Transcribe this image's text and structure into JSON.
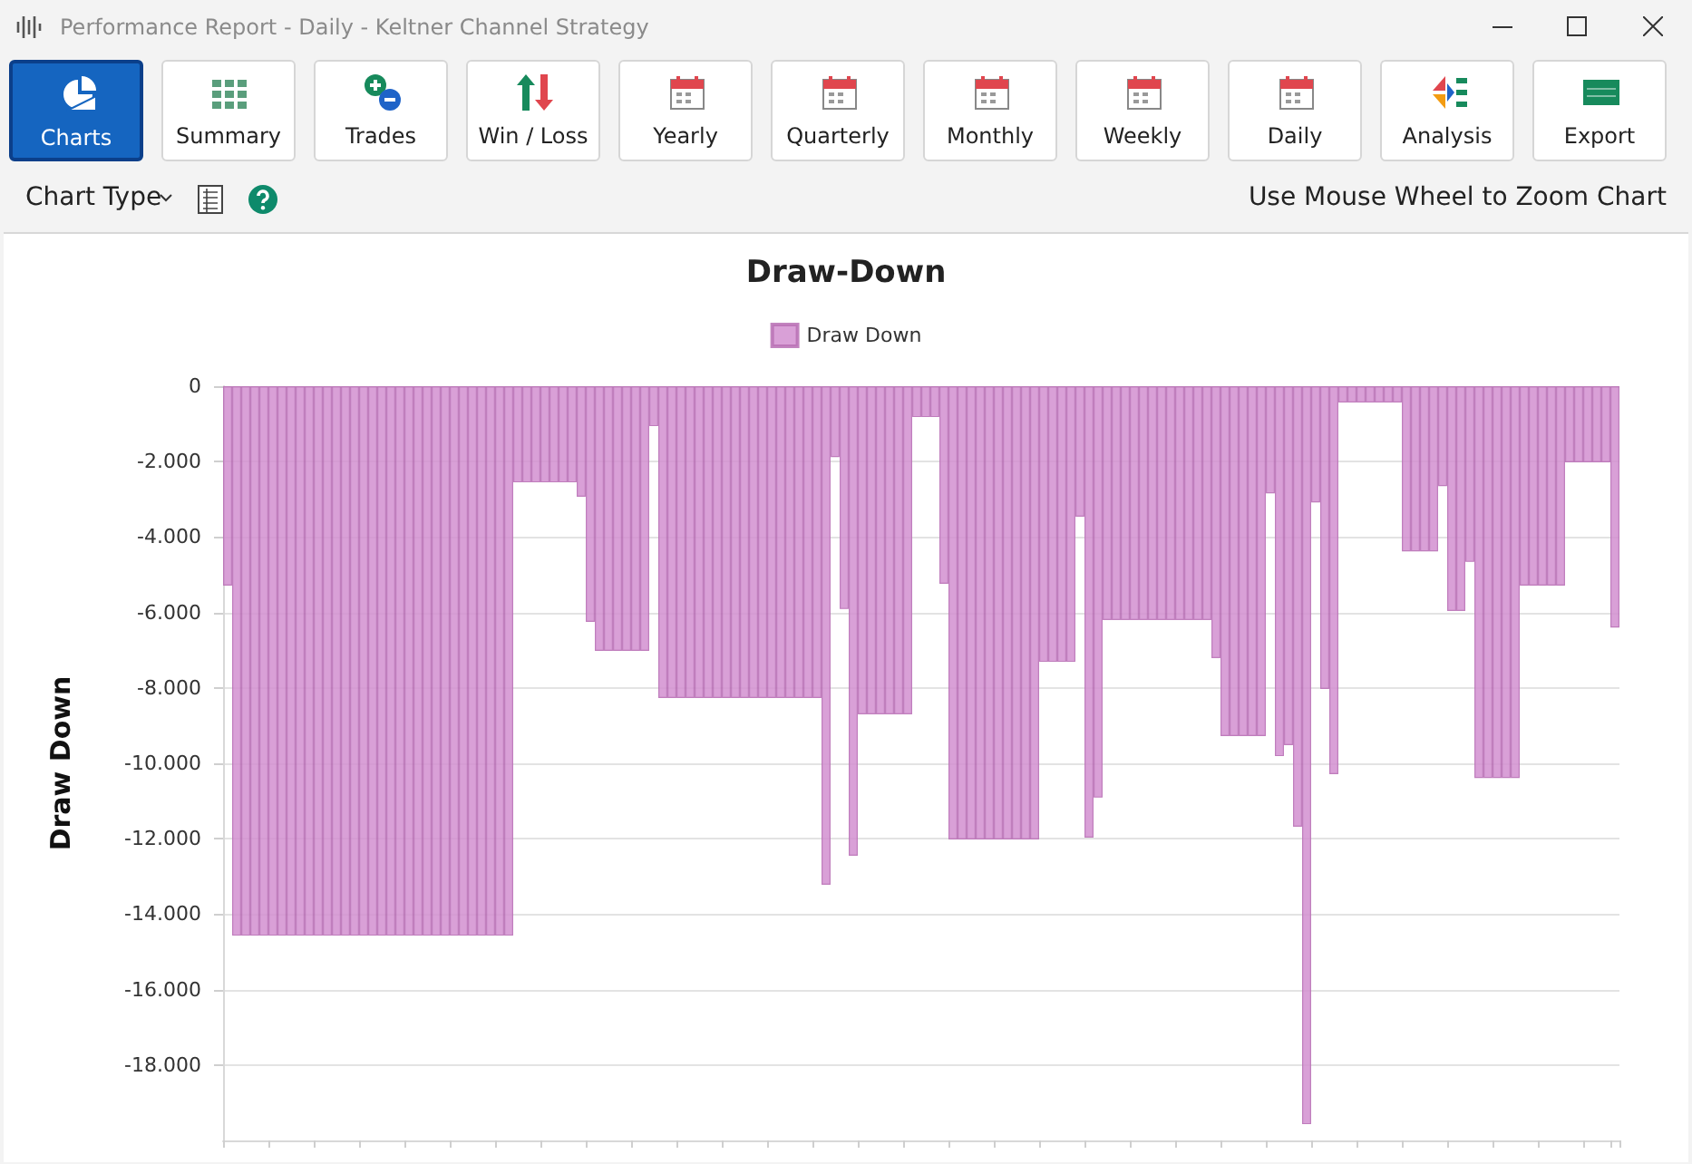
{
  "chart_data": {
    "type": "bar",
    "title": "Draw-Down",
    "ylabel": "Draw Down",
    "annotations": [
      "Performance Report - Daily - Keltner Channel Strategy",
      "Charts",
      "Summary",
      "Trades",
      "Win / Loss",
      "Yearly",
      "Quarterly",
      "Monthly",
      "Weekly",
      "Daily",
      "Analysis",
      "Export",
      "Chart Type",
      "Use Mouse Wheel to Zoom Chart"
    ],
    "categories": [
      null,
      null,
      null,
      null,
      null,
      null,
      null,
      null,
      null,
      null,
      null,
      null,
      null,
      null,
      null,
      null,
      null,
      null,
      null,
      null,
      null,
      null,
      null,
      null,
      null,
      null,
      null,
      null,
      null,
      null,
      null,
      null,
      null,
      null,
      null,
      null,
      null,
      null,
      null,
      null,
      null,
      null,
      null,
      null,
      null,
      null,
      null,
      null,
      null,
      null,
      null,
      null,
      null,
      null,
      null,
      null,
      null,
      null,
      null,
      null,
      null,
      null,
      null,
      null,
      null,
      null,
      null,
      null,
      null,
      null,
      null,
      null,
      null,
      null,
      null,
      null,
      null,
      null,
      null,
      null,
      null,
      null,
      null,
      null,
      null,
      null,
      null,
      null,
      null,
      null,
      null,
      null,
      null,
      null,
      null,
      null,
      null,
      null,
      null,
      null,
      null,
      null,
      null,
      null,
      null,
      null,
      null,
      null,
      null,
      null,
      null,
      null,
      null,
      null,
      null,
      null,
      null,
      null,
      null,
      null,
      null,
      null,
      null,
      null,
      null,
      null,
      null,
      null,
      null,
      null,
      null,
      null,
      null,
      null,
      null,
      null,
      null,
      null,
      null,
      null,
      null,
      null,
      null,
      null,
      null,
      null,
      null,
      null,
      null,
      null,
      null,
      null,
      null,
      null
    ],
    "series": [
      {
        "name": "Draw Down",
        "color": "#d28fd0",
        "values": [
          -5290,
          -14570,
          -14570,
          -14570,
          -14570,
          -14570,
          -14570,
          -14570,
          -14570,
          -14570,
          -14570,
          -14570,
          -14570,
          -14570,
          -14570,
          -14570,
          -14570,
          -14570,
          -14570,
          -14570,
          -14570,
          -14570,
          -14570,
          -14570,
          -14570,
          -14570,
          -14570,
          -14570,
          -14570,
          -14570,
          -14570,
          -14570,
          -2550,
          -2550,
          -2550,
          -2550,
          -2550,
          -2550,
          -2550,
          -2930,
          -6250,
          -7020,
          -7020,
          -7020,
          -7020,
          -7020,
          -7020,
          -1060,
          -8270,
          -8270,
          -8270,
          -8270,
          -8270,
          -8270,
          -8270,
          -8270,
          -8270,
          -8270,
          -8270,
          -8270,
          -8270,
          -8270,
          -8270,
          -8270,
          -8270,
          -8270,
          -13220,
          -1880,
          -5910,
          -12450,
          -8700,
          -8700,
          -8700,
          -8700,
          -8700,
          -8700,
          -820,
          -820,
          -820,
          -5240,
          -12020,
          -12020,
          -12020,
          -12020,
          -12020,
          -12020,
          -12020,
          -12020,
          -12020,
          -12020,
          -7310,
          -7310,
          -7310,
          -7310,
          -3460,
          -11970,
          -10910,
          -6200,
          -6200,
          -6200,
          -6200,
          -6200,
          -6200,
          -6200,
          -6200,
          -6200,
          -6200,
          -6200,
          -6200,
          -7210,
          -9280,
          -9280,
          -9280,
          -9280,
          -9280,
          -2840,
          -9810,
          -9520,
          -11680,
          -19570,
          -3080,
          -8030,
          -10290,
          -430,
          -430,
          -430,
          -430,
          -430,
          -430,
          -430,
          -4380,
          -4380,
          -4380,
          -4380,
          -2650,
          -5960,
          -5960,
          -4660,
          -10390,
          -10390,
          -10390,
          -10390,
          -10390,
          -5290,
          -5290,
          -5290,
          -5290,
          -5290,
          -2020,
          -2020,
          -2020,
          -2020,
          -2020,
          -6400
        ]
      }
    ],
    "ylim": [
      -20000,
      0
    ],
    "yticks": [
      0,
      {
        "value": -2000,
        "label": "-2.000"
      },
      {
        "value": -4000,
        "label": "-4.000"
      },
      {
        "value": -6000,
        "label": "-6.000"
      },
      {
        "value": -8000,
        "label": "-8.000"
      },
      {
        "value": -10000,
        "label": "-10.000"
      },
      {
        "value": -12000,
        "label": "-12.000"
      },
      {
        "value": -14000,
        "label": "-14.000"
      },
      {
        "value": -16000,
        "label": "-16.000"
      },
      {
        "value": -18000,
        "label": "-18.000"
      }
    ],
    "grid": "y",
    "legend": "top",
    "tick_labels": "y"
  }
}
